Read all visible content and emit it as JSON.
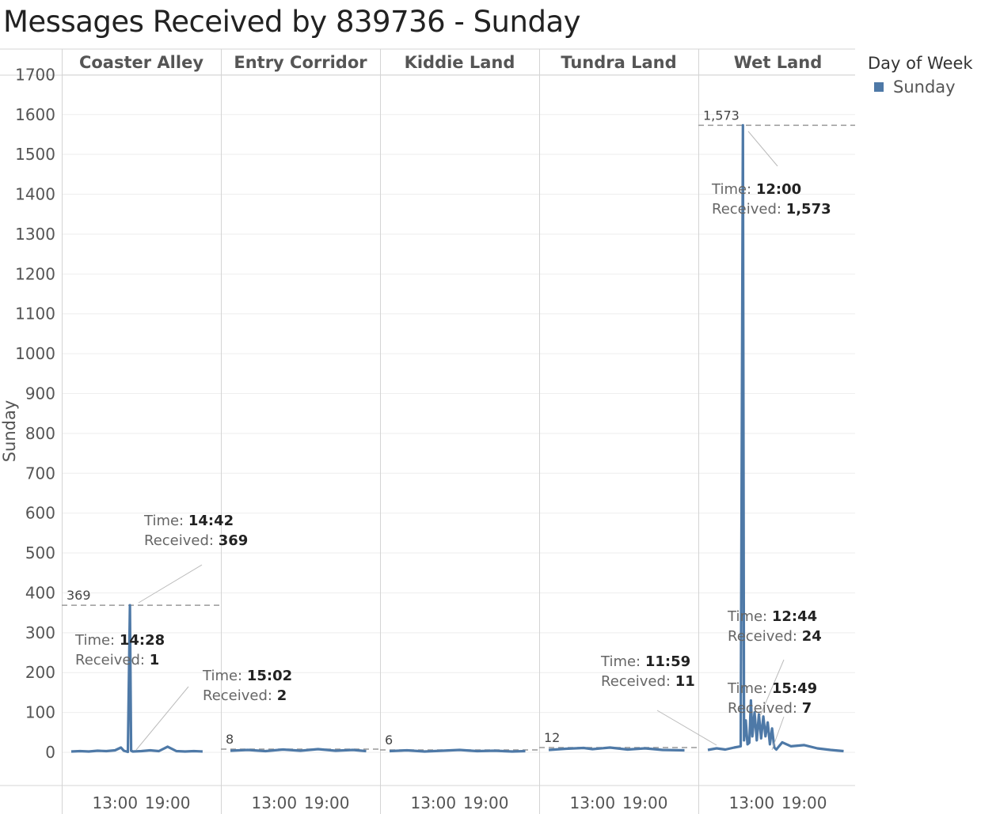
{
  "title": "Messages Received by 839736 - Sunday",
  "legend": {
    "title": "Day of Week",
    "items": [
      {
        "label": "Sunday",
        "color": "#4e79a7"
      }
    ]
  },
  "chart_data": {
    "type": "line",
    "title": "Messages Received by 839736 - Sunday",
    "ylabel": "Sunday",
    "xlabel": "",
    "ylim": [
      -80,
      1700
    ],
    "yticks": [
      0,
      100,
      200,
      300,
      400,
      500,
      600,
      700,
      800,
      900,
      1000,
      1100,
      1200,
      1300,
      1400,
      1500,
      1600,
      1700
    ],
    "x_tick_labels": [
      "13:00",
      "19:00"
    ],
    "x_tick_hours": [
      13,
      19
    ],
    "x_range_hours": [
      8,
      24
    ],
    "grid": true,
    "legend_position": "right",
    "series_color": "#4e79a7",
    "panels": [
      {
        "name": "Coaster Alley",
        "max_label": "369",
        "max_value": 369,
        "points": [
          {
            "t": "8:00",
            "y": 2
          },
          {
            "t": "9:00",
            "y": 3
          },
          {
            "t": "10:00",
            "y": 2
          },
          {
            "t": "11:00",
            "y": 4
          },
          {
            "t": "12:00",
            "y": 3
          },
          {
            "t": "13:00",
            "y": 5
          },
          {
            "t": "13:40",
            "y": 12
          },
          {
            "t": "14:00",
            "y": 4
          },
          {
            "t": "14:28",
            "y": 1
          },
          {
            "t": "14:42",
            "y": 369
          },
          {
            "t": "14:50",
            "y": 4
          },
          {
            "t": "15:02",
            "y": 2
          },
          {
            "t": "16:00",
            "y": 3
          },
          {
            "t": "17:00",
            "y": 5
          },
          {
            "t": "18:00",
            "y": 3
          },
          {
            "t": "19:00",
            "y": 14
          },
          {
            "t": "20:00",
            "y": 3
          },
          {
            "t": "21:00",
            "y": 2
          },
          {
            "t": "22:00",
            "y": 3
          },
          {
            "t": "23:00",
            "y": 2
          }
        ],
        "annotations": [
          {
            "time": "14:42",
            "received": "369"
          },
          {
            "time": "14:28",
            "received": "1"
          },
          {
            "time": "15:02",
            "received": "2"
          }
        ]
      },
      {
        "name": "Entry Corridor",
        "max_label": "8",
        "max_value": 8,
        "points": [
          {
            "t": "8:00",
            "y": 4
          },
          {
            "t": "10:00",
            "y": 6
          },
          {
            "t": "12:00",
            "y": 3
          },
          {
            "t": "14:00",
            "y": 7
          },
          {
            "t": "16:00",
            "y": 4
          },
          {
            "t": "18:00",
            "y": 8
          },
          {
            "t": "20:00",
            "y": 4
          },
          {
            "t": "22:00",
            "y": 6
          },
          {
            "t": "23:30",
            "y": 3
          }
        ],
        "annotations": []
      },
      {
        "name": "Kiddie Land",
        "max_label": "6",
        "max_value": 6,
        "points": [
          {
            "t": "8:00",
            "y": 3
          },
          {
            "t": "10:00",
            "y": 5
          },
          {
            "t": "12:00",
            "y": 2
          },
          {
            "t": "14:00",
            "y": 4
          },
          {
            "t": "16:00",
            "y": 6
          },
          {
            "t": "18:00",
            "y": 3
          },
          {
            "t": "20:00",
            "y": 4
          },
          {
            "t": "22:00",
            "y": 2
          },
          {
            "t": "23:30",
            "y": 3
          }
        ],
        "annotations": []
      },
      {
        "name": "Tundra Land",
        "max_label": "12",
        "max_value": 12,
        "points": [
          {
            "t": "8:00",
            "y": 6
          },
          {
            "t": "10:00",
            "y": 9
          },
          {
            "t": "11:59",
            "y": 11
          },
          {
            "t": "13:00",
            "y": 8
          },
          {
            "t": "15:00",
            "y": 12
          },
          {
            "t": "17:00",
            "y": 7
          },
          {
            "t": "19:00",
            "y": 10
          },
          {
            "t": "21:00",
            "y": 6
          },
          {
            "t": "23:30",
            "y": 5
          }
        ],
        "annotations": [
          {
            "time": "11:59",
            "received": "11"
          }
        ]
      },
      {
        "name": "Wet Land",
        "max_label": "1,573",
        "max_value": 1573,
        "points": [
          {
            "t": "8:00",
            "y": 6
          },
          {
            "t": "9:00",
            "y": 10
          },
          {
            "t": "10:00",
            "y": 7
          },
          {
            "t": "11:00",
            "y": 12
          },
          {
            "t": "11:45",
            "y": 15
          },
          {
            "t": "12:00",
            "y": 1573
          },
          {
            "t": "12:08",
            "y": 30
          },
          {
            "t": "12:20",
            "y": 80
          },
          {
            "t": "12:32",
            "y": 20
          },
          {
            "t": "12:44",
            "y": 24
          },
          {
            "t": "12:55",
            "y": 130
          },
          {
            "t": "13:05",
            "y": 40
          },
          {
            "t": "13:20",
            "y": 100
          },
          {
            "t": "13:35",
            "y": 30
          },
          {
            "t": "13:50",
            "y": 95
          },
          {
            "t": "14:05",
            "y": 35
          },
          {
            "t": "14:20",
            "y": 90
          },
          {
            "t": "14:35",
            "y": 40
          },
          {
            "t": "14:50",
            "y": 75
          },
          {
            "t": "15:05",
            "y": 20
          },
          {
            "t": "15:20",
            "y": 60
          },
          {
            "t": "15:35",
            "y": 12
          },
          {
            "t": "15:49",
            "y": 7
          },
          {
            "t": "16:30",
            "y": 25
          },
          {
            "t": "17:30",
            "y": 15
          },
          {
            "t": "19:00",
            "y": 18
          },
          {
            "t": "20:30",
            "y": 10
          },
          {
            "t": "22:00",
            "y": 6
          },
          {
            "t": "23:30",
            "y": 3
          }
        ],
        "annotations": [
          {
            "time": "12:00",
            "received": "1,573"
          },
          {
            "time": "12:44",
            "received": "24"
          },
          {
            "time": "15:49",
            "received": "7"
          }
        ]
      }
    ]
  },
  "labels": {
    "time_key": "Time:",
    "received_key": "Received:"
  }
}
